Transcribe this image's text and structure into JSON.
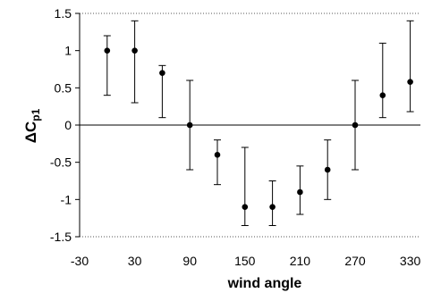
{
  "chart_data": {
    "type": "scatter",
    "title": "",
    "xlabel": "wind angle",
    "ylabel_main": "ΔC",
    "ylabel_sub": "p1",
    "xlim": [
      -30,
      345
    ],
    "ylim": [
      -1.5,
      1.5
    ],
    "x_ticks": [
      -30,
      30,
      90,
      150,
      210,
      270,
      330
    ],
    "x_tick_labels": [
      "-30",
      "30",
      "90",
      "150",
      "210",
      "270",
      "330"
    ],
    "y_ticks": [
      1.5,
      1,
      0.5,
      0,
      -0.5,
      -1,
      -1.5
    ],
    "y_tick_labels": [
      "1.5",
      "1",
      "0.5",
      "0",
      "-0.5",
      "-1",
      "-1.5"
    ],
    "grid": "dotted lines at y = 1.5 and y = -1.5",
    "zero_line": true,
    "series": [
      {
        "points": [
          {
            "x": 0,
            "y": 1.0,
            "low": 0.4,
            "high": 1.2
          },
          {
            "x": 30,
            "y": 1.0,
            "low": 0.3,
            "high": 1.4
          },
          {
            "x": 60,
            "y": 0.7,
            "low": 0.1,
            "high": 0.8
          },
          {
            "x": 90,
            "y": 0.0,
            "low": -0.6,
            "high": 0.6
          },
          {
            "x": 120,
            "y": -0.4,
            "low": -0.8,
            "high": -0.2
          },
          {
            "x": 150,
            "y": -1.1,
            "low": -1.35,
            "high": -0.3
          },
          {
            "x": 180,
            "y": -1.1,
            "low": -1.35,
            "high": -0.75
          },
          {
            "x": 210,
            "y": -0.9,
            "low": -1.2,
            "high": -0.55
          },
          {
            "x": 240,
            "y": -0.6,
            "low": -1.0,
            "high": -0.2
          },
          {
            "x": 270,
            "y": 0.0,
            "low": -0.6,
            "high": 0.6
          },
          {
            "x": 300,
            "y": 0.4,
            "low": 0.1,
            "high": 1.1
          },
          {
            "x": 330,
            "y": 0.58,
            "low": 0.18,
            "high": 1.4
          }
        ]
      }
    ]
  }
}
